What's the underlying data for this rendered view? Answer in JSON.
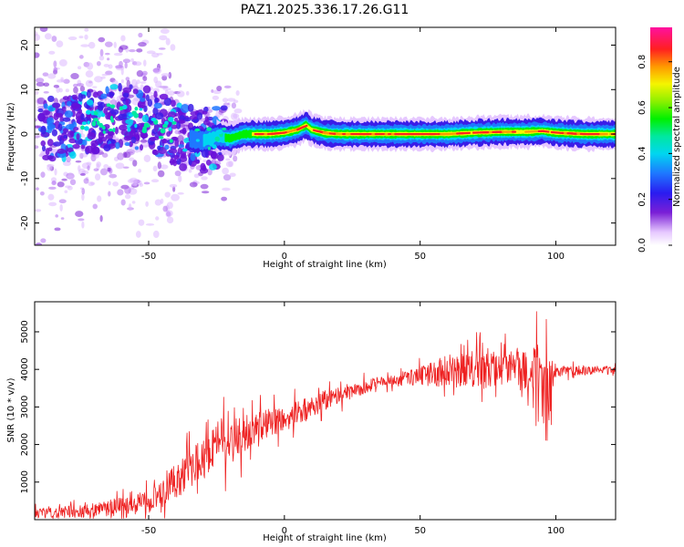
{
  "title": "PAZ1.2025.336.17.26.G11",
  "colors": {
    "snr_line": "#ee2222",
    "background": "#ffffff"
  },
  "chart_data": [
    {
      "type": "heatmap",
      "name": "spectrogram",
      "xlabel": "Height of straight line (km)",
      "ylabel": "Frequency (Hz)",
      "xlim": [
        -92,
        122
      ],
      "ylim": [
        -25,
        24
      ],
      "xticks": [
        -50,
        0,
        50,
        100
      ],
      "xtick_labels": [
        "-50",
        "0",
        "50",
        "100"
      ],
      "yticks": [
        20,
        10,
        0,
        -10,
        -20
      ],
      "ytick_labels": [
        "20",
        "10",
        "0",
        "-10",
        "-20"
      ],
      "ridge": {
        "description": "frequency of dominant spectral peak vs height",
        "x": [
          -92,
          -80,
          -70,
          -60,
          -50,
          -45,
          -40,
          -35,
          -30,
          -25,
          -20,
          -15,
          -10,
          -5,
          0,
          5,
          8,
          10,
          15,
          20,
          30,
          40,
          50,
          60,
          70,
          80,
          90,
          95,
          100,
          110,
          122
        ],
        "y": [
          0.5,
          1.5,
          3,
          4,
          3,
          2,
          0,
          -1,
          -1.5,
          -0.5,
          -1,
          0,
          0,
          0,
          0.3,
          1,
          2,
          1,
          0.2,
          0,
          0,
          0,
          0,
          0,
          0.3,
          0.5,
          0.5,
          0.7,
          0.3,
          0,
          0
        ],
        "peak_amplitude": 0.9
      },
      "colorbar": {
        "label": "Normalized spectral amplitude",
        "range": [
          0,
          0.95
        ],
        "ticks": [
          0.0,
          0.2,
          0.4,
          0.6,
          0.8
        ],
        "tick_labels": [
          "0.0",
          "0.2",
          "0.4",
          "0.6",
          "0.8"
        ],
        "colormap": "gist_ncar-like (white, violet, blue, cyan, green, yellow, red, magenta)"
      }
    },
    {
      "type": "line",
      "name": "snr",
      "xlabel": "Height of straight line (km)",
      "ylabel": "SNR (10 * v/v)",
      "xlim": [
        -92,
        122
      ],
      "ylim": [
        0,
        5800
      ],
      "xticks": [
        -50,
        0,
        50,
        100
      ],
      "xtick_labels": [
        "-50",
        "0",
        "50",
        "100"
      ],
      "yticks": [
        1000,
        2000,
        3000,
        4000,
        5000
      ],
      "ytick_labels": [
        "1000",
        "2000",
        "3000",
        "4000",
        "5000"
      ],
      "series": [
        {
          "name": "SNR",
          "trend_x": [
            -92,
            -80,
            -70,
            -60,
            -50,
            -45,
            -40,
            -35,
            -30,
            -25,
            -20,
            -15,
            -10,
            -5,
            0,
            5,
            10,
            15,
            20,
            25,
            30,
            35,
            40,
            45,
            50,
            55,
            60,
            65,
            70,
            75,
            80,
            85,
            90,
            95,
            98,
            100,
            105,
            110,
            115,
            122
          ],
          "trend_y": [
            150,
            200,
            250,
            350,
            450,
            700,
            1000,
            1300,
            1600,
            1900,
            2100,
            2300,
            2500,
            2600,
            2700,
            2850,
            3000,
            3200,
            3300,
            3400,
            3550,
            3650,
            3700,
            3780,
            3850,
            3900,
            3950,
            3950,
            3950,
            3980,
            4000,
            4000,
            3980,
            4000,
            3300,
            3950,
            3950,
            3970,
            3980,
            3950
          ],
          "noise_amp_x": [
            -92,
            -70,
            -60,
            -50,
            -40,
            -30,
            -20,
            -10,
            0,
            10,
            20,
            40,
            50,
            60,
            70,
            80,
            90,
            95,
            98,
            100,
            122
          ],
          "noise_amp_y": [
            250,
            250,
            350,
            450,
            700,
            800,
            900,
            600,
            450,
            450,
            300,
            200,
            400,
            600,
            700,
            700,
            700,
            1300,
            1500,
            200,
            150
          ]
        }
      ]
    }
  ]
}
